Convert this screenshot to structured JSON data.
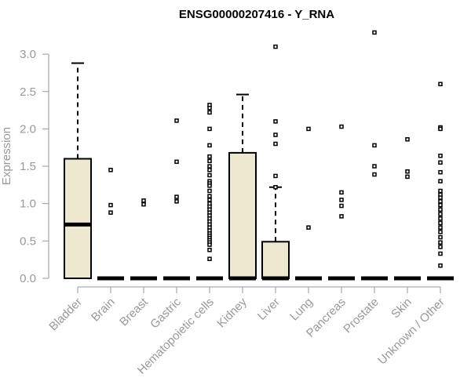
{
  "chart_data": {
    "type": "box",
    "title": "ENSG00000207416 - Y_RNA",
    "ylabel": "Expression",
    "xlabel": "",
    "ylim": [
      0,
      3.3
    ],
    "yticks": [
      0.0,
      0.5,
      1.0,
      1.5,
      2.0,
      2.5,
      3.0
    ],
    "ytick_labels": [
      "0.0",
      "0.5",
      "1.0",
      "1.5",
      "2.0",
      "2.5",
      "3.0"
    ],
    "box_fill": "#ede8d0",
    "categories": [
      "Bladder",
      "Brain",
      "Breast",
      "Gastric",
      "Hematopoietic cells",
      "Kidney",
      "Liver",
      "Lung",
      "Pancreas",
      "Prostate",
      "Skin",
      "Unknown / Other"
    ],
    "series": [
      {
        "category": "Bladder",
        "q1": 0.0,
        "median": 0.72,
        "q3": 1.6,
        "whisker_low": 0.0,
        "whisker_high": 2.88,
        "outliers": []
      },
      {
        "category": "Brain",
        "q1": 0.0,
        "median": 0.0,
        "q3": 0.0,
        "whisker_low": 0.0,
        "whisker_high": 0.0,
        "outliers": [
          1.45,
          0.98,
          0.88
        ]
      },
      {
        "category": "Breast",
        "q1": 0.0,
        "median": 0.0,
        "q3": 0.0,
        "whisker_low": 0.0,
        "whisker_high": 0.0,
        "outliers": [
          1.04,
          0.99
        ]
      },
      {
        "category": "Gastric",
        "q1": 0.0,
        "median": 0.0,
        "q3": 0.0,
        "whisker_low": 0.0,
        "whisker_high": 0.0,
        "outliers": [
          2.11,
          1.56,
          1.09,
          1.03
        ]
      },
      {
        "category": "Hematopoietic cells",
        "q1": 0.0,
        "median": 0.0,
        "q3": 0.0,
        "whisker_low": 0.0,
        "whisker_high": 0.0,
        "outliers": [
          2.32,
          2.28,
          2.22,
          2.0,
          1.78,
          1.63,
          1.57,
          1.5,
          1.45,
          1.38,
          1.3,
          1.27,
          1.24,
          1.17,
          1.1,
          1.05,
          1.0,
          0.96,
          0.92,
          0.88,
          0.84,
          0.8,
          0.76,
          0.72,
          0.68,
          0.64,
          0.6,
          0.57,
          0.54,
          0.51,
          0.48,
          0.45,
          0.38,
          0.26
        ]
      },
      {
        "category": "Kidney",
        "q1": 0.0,
        "median": 0.0,
        "q3": 1.68,
        "whisker_low": 0.0,
        "whisker_high": 2.46,
        "outliers": []
      },
      {
        "category": "Liver",
        "q1": 0.0,
        "median": 0.0,
        "q3": 0.49,
        "whisker_low": 0.0,
        "whisker_high": 1.22,
        "outliers": [
          3.1,
          2.1,
          1.92,
          1.8,
          1.37,
          1.22
        ]
      },
      {
        "category": "Lung",
        "q1": 0.0,
        "median": 0.0,
        "q3": 0.0,
        "whisker_low": 0.0,
        "whisker_high": 0.0,
        "outliers": [
          2.0,
          0.68
        ]
      },
      {
        "category": "Pancreas",
        "q1": 0.0,
        "median": 0.0,
        "q3": 0.0,
        "whisker_low": 0.0,
        "whisker_high": 0.0,
        "outliers": [
          2.03,
          1.15,
          1.05,
          0.97,
          0.83
        ]
      },
      {
        "category": "Prostate",
        "q1": 0.0,
        "median": 0.0,
        "q3": 0.0,
        "whisker_low": 0.0,
        "whisker_high": 0.0,
        "outliers": [
          3.29,
          1.78,
          1.5,
          1.39
        ]
      },
      {
        "category": "Skin",
        "q1": 0.0,
        "median": 0.0,
        "q3": 0.0,
        "whisker_low": 0.0,
        "whisker_high": 0.0,
        "outliers": [
          1.86,
          1.43,
          1.36
        ]
      },
      {
        "category": "Unknown / Other",
        "q1": 0.0,
        "median": 0.0,
        "q3": 0.0,
        "whisker_low": 0.0,
        "whisker_high": 0.0,
        "outliers": [
          2.6,
          2.02,
          2.0,
          1.64,
          1.55,
          1.42,
          1.3,
          1.17,
          1.12,
          1.08,
          1.03,
          0.98,
          0.92,
          0.86,
          0.8,
          0.74,
          0.68,
          0.62,
          0.55,
          0.48,
          0.42,
          0.33,
          0.17
        ]
      }
    ]
  }
}
